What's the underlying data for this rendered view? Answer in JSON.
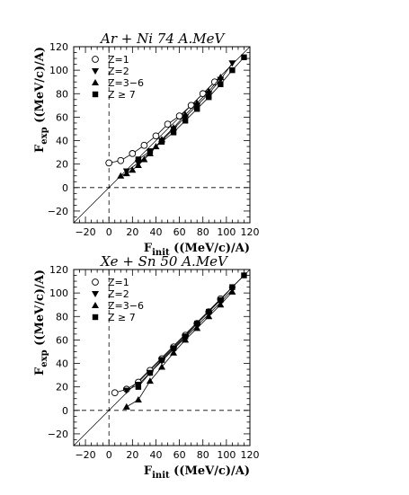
{
  "chart_data": [
    {
      "type": "scatter",
      "title": "Ar + Ni 74 A.MeV",
      "xlabel": {
        "main": "F",
        "sub": "init",
        "rest": " ((MeV/c)/A)"
      },
      "ylabel": {
        "main": "F",
        "sub": "exp",
        "rest": " ((MeV/c)/A)"
      },
      "xlim": [
        -30,
        120
      ],
      "ylim": [
        -30,
        120
      ],
      "xticks": [
        -20,
        0,
        20,
        40,
        60,
        80,
        100,
        120
      ],
      "yticks": [
        -20,
        0,
        20,
        40,
        60,
        80,
        100,
        120
      ],
      "diagonal": true,
      "dashed_zero_lines": true,
      "legend_position": "top-left",
      "series": [
        {
          "name": "Z=1",
          "marker": "circle-open",
          "x": [
            0,
            10,
            20,
            30,
            40,
            50,
            60,
            70,
            80,
            90
          ],
          "y": [
            21,
            23,
            29,
            36,
            44,
            54,
            61,
            70,
            80,
            90
          ]
        },
        {
          "name": "Z=2",
          "marker": "triangle-down",
          "x": [
            15,
            25,
            35,
            45,
            55,
            65,
            75,
            85,
            95,
            105
          ],
          "y": [
            14,
            21,
            30,
            40,
            50,
            60,
            70,
            80,
            92,
            106
          ]
        },
        {
          "name": "Z=3−6",
          "marker": "triangle-up",
          "x": [
            10,
            15,
            20,
            25,
            30,
            35,
            40,
            45,
            55,
            65,
            75,
            85,
            95
          ],
          "y": [
            10,
            12,
            15,
            19,
            24,
            29,
            35,
            41,
            51,
            62,
            72,
            82,
            94
          ]
        },
        {
          "name": "Z ≥ 7",
          "marker": "square",
          "x": [
            25,
            35,
            45,
            55,
            65,
            75,
            85,
            95,
            105,
            115
          ],
          "y": [
            24,
            31,
            39,
            47,
            57,
            67,
            77,
            88,
            100,
            111
          ]
        }
      ]
    },
    {
      "type": "scatter",
      "title": "Xe + Sn 50 A.MeV",
      "xlabel": {
        "main": "F",
        "sub": "init",
        "rest": " ((MeV/c)/A)"
      },
      "ylabel": {
        "main": "F",
        "sub": "exp",
        "rest": " ((MeV/c)/A)"
      },
      "xlim": [
        -30,
        120
      ],
      "ylim": [
        -30,
        120
      ],
      "xticks": [
        -20,
        0,
        20,
        40,
        60,
        80,
        100,
        120
      ],
      "yticks": [
        -20,
        0,
        20,
        40,
        60,
        80,
        100,
        120
      ],
      "diagonal": true,
      "dashed_zero_lines": true,
      "legend_position": "top-left",
      "series": [
        {
          "name": "Z=1",
          "marker": "circle-open",
          "x": [
            5,
            15,
            25,
            35,
            45,
            55,
            65,
            75,
            85,
            95
          ],
          "y": [
            15,
            18,
            24,
            34,
            44,
            54,
            64,
            74,
            84,
            95
          ]
        },
        {
          "name": "Z=2",
          "marker": "triangle-down",
          "x": [
            15,
            25,
            35,
            45,
            55,
            65,
            75,
            85,
            95,
            105
          ],
          "y": [
            17,
            22,
            32,
            42,
            52,
            62,
            72,
            82,
            92,
            103
          ]
        },
        {
          "name": "Z=3−6",
          "marker": "triangle-up",
          "x": [
            15,
            25,
            35,
            45,
            55,
            65,
            75,
            85,
            95,
            105
          ],
          "y": [
            3,
            9,
            25,
            37,
            49,
            60,
            70,
            80,
            90,
            101
          ]
        },
        {
          "name": "Z ≥ 7",
          "marker": "square",
          "x": [
            25,
            35,
            45,
            55,
            65,
            75,
            85,
            95,
            105,
            115
          ],
          "y": [
            20,
            32,
            43,
            53,
            63,
            74,
            84,
            94,
            105,
            115
          ]
        }
      ]
    }
  ]
}
